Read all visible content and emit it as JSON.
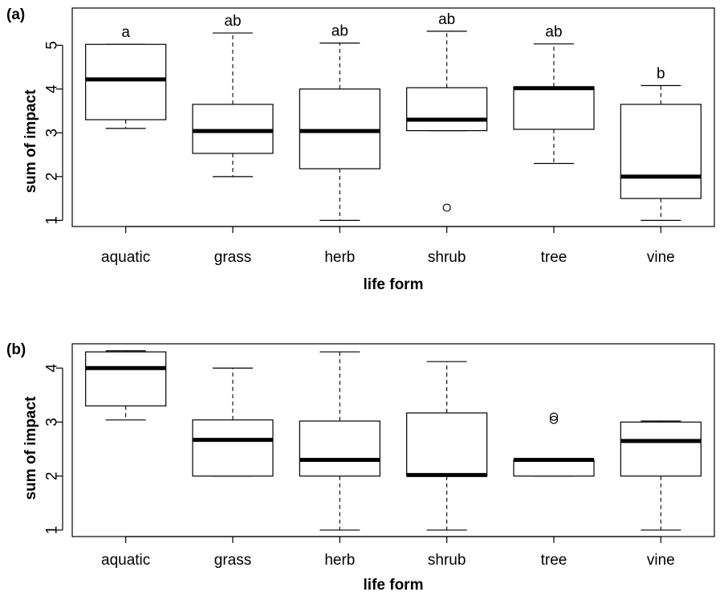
{
  "chart_data": [
    {
      "panel": "(a)",
      "type": "boxplot",
      "xlabel": "life form",
      "ylabel": "sum of impact",
      "ylim": [
        0.86,
        5.85
      ],
      "yticks": [
        "1",
        "2",
        "3",
        "4",
        "5"
      ],
      "categories": [
        "aquatic",
        "grass",
        "herb",
        "shrub",
        "tree",
        "vine"
      ],
      "boxes": [
        {
          "category": "aquatic",
          "lower_whisker": 3.1,
          "q1": 3.3,
          "median": 4.22,
          "q3": 5.02,
          "upper_whisker": 5.02,
          "outliers": [],
          "letter": "a"
        },
        {
          "category": "grass",
          "lower_whisker": 2.0,
          "q1": 2.53,
          "median": 3.04,
          "q3": 3.65,
          "upper_whisker": 5.28,
          "outliers": [],
          "letter": "ab"
        },
        {
          "category": "herb",
          "lower_whisker": 1.0,
          "q1": 2.18,
          "median": 3.04,
          "q3": 4.0,
          "upper_whisker": 5.05,
          "outliers": [],
          "letter": "ab"
        },
        {
          "category": "shrub",
          "lower_whisker": 3.05,
          "q1": 3.05,
          "median": 3.3,
          "q3": 4.03,
          "upper_whisker": 5.32,
          "outliers": [
            1.29
          ],
          "letter": "ab"
        },
        {
          "category": "tree",
          "lower_whisker": 2.3,
          "q1": 3.08,
          "median": 4.02,
          "q3": 4.05,
          "upper_whisker": 5.03,
          "outliers": [],
          "letter": "ab"
        },
        {
          "category": "vine",
          "lower_whisker": 1.0,
          "q1": 1.5,
          "median": 2.0,
          "q3": 3.65,
          "upper_whisker": 4.08,
          "outliers": [],
          "letter": "b"
        }
      ],
      "grid": false
    },
    {
      "panel": "(b)",
      "type": "boxplot",
      "xlabel": "life form",
      "ylabel": "sum of impact",
      "ylim": [
        0.88,
        4.45
      ],
      "yticks": [
        "1",
        "2",
        "3",
        "4"
      ],
      "categories": [
        "aquatic",
        "grass",
        "herb",
        "shrub",
        "tree",
        "vine"
      ],
      "boxes": [
        {
          "category": "aquatic",
          "lower_whisker": 3.04,
          "q1": 3.3,
          "median": 4.0,
          "q3": 4.3,
          "upper_whisker": 4.32,
          "outliers": []
        },
        {
          "category": "grass",
          "lower_whisker": 2.0,
          "q1": 2.0,
          "median": 2.67,
          "q3": 3.04,
          "upper_whisker": 4.0,
          "outliers": []
        },
        {
          "category": "herb",
          "lower_whisker": 1.0,
          "q1": 2.0,
          "median": 2.3,
          "q3": 3.02,
          "upper_whisker": 4.3,
          "outliers": []
        },
        {
          "category": "shrub",
          "lower_whisker": 1.0,
          "q1": 2.0,
          "median": 2.02,
          "q3": 3.17,
          "upper_whisker": 4.12,
          "outliers": []
        },
        {
          "category": "tree",
          "lower_whisker": 2.0,
          "q1": 2.0,
          "median": 2.3,
          "q3": 2.3,
          "upper_whisker": 2.3,
          "outliers": [
            3.04,
            3.1
          ]
        },
        {
          "category": "vine",
          "lower_whisker": 1.0,
          "q1": 2.0,
          "median": 2.65,
          "q3": 3.0,
          "upper_whisker": 3.02,
          "outliers": []
        }
      ],
      "grid": false
    }
  ]
}
